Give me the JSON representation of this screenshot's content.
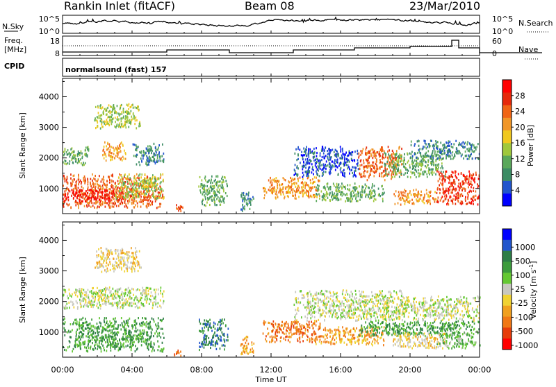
{
  "header": {
    "station": "Rankin Inlet (fitACF)",
    "beam": "Beam 08",
    "date": "23/Mar/2010"
  },
  "top_panels": {
    "nsky_label": "N.Sky",
    "nsky_ticks": [
      "10^5",
      "10^0"
    ],
    "nsearch_label": "N.Search",
    "nsearch_ticks": [
      "10^5",
      "10^0"
    ],
    "freq_label_1": "Freq.",
    "freq_label_2": "[MHz]",
    "freq_ticks": [
      "18",
      "8"
    ],
    "nave_label": "Nave",
    "nave_ticks": [
      "60",
      "0"
    ],
    "cpid_label": "CPID",
    "cpid_text": "normalsound (fast) 157"
  },
  "colors": {
    "power": [
      "#0000ff",
      "#2255cc",
      "#3c8c64",
      "#5aa85a",
      "#a0c83c",
      "#f0c81e",
      "#f09628",
      "#f06414",
      "#e6280a",
      "#ff0000"
    ],
    "velocity": [
      "#0000ff",
      "#2255cc",
      "#2d7d46",
      "#3c9b3c",
      "#64c832",
      "#c8c8c0",
      "#f0d232",
      "#f0a01e",
      "#f07814",
      "#e63c0a",
      "#ff0000"
    ]
  },
  "chart_data": [
    {
      "type": "heatmap",
      "name": "power",
      "title": "",
      "xlabel": "",
      "ylabel": "Slant Range [km]",
      "x_ticks": [
        "00:00",
        "04:00",
        "08:00",
        "12:00",
        "16:00",
        "20:00",
        "00:00"
      ],
      "xlim": [
        0,
        24
      ],
      "ylim": [
        180,
        4600
      ],
      "y_ticks": [
        1000,
        2000,
        3000,
        4000
      ],
      "colorbar_label": "Power [dB]",
      "colorbar_ticks": [
        4,
        8,
        12,
        16,
        20,
        24,
        28
      ],
      "colorbar_range": [
        0,
        32
      ],
      "blobs": [
        {
          "t0": 0.0,
          "t1": 5.8,
          "r0": 400,
          "r1": 1500,
          "c": 7
        },
        {
          "t0": 0.0,
          "t1": 3.5,
          "r0": 600,
          "r1": 1000,
          "c": 9
        },
        {
          "t0": 0.0,
          "t1": 1.5,
          "r0": 1800,
          "r1": 2400,
          "c": 3
        },
        {
          "t0": 2.2,
          "t1": 3.6,
          "r0": 1950,
          "r1": 2550,
          "c": 6
        },
        {
          "t0": 3.0,
          "t1": 5.8,
          "r0": 700,
          "r1": 1500,
          "c": 4
        },
        {
          "t0": 4.0,
          "t1": 5.8,
          "r0": 1800,
          "r1": 2500,
          "c": 2
        },
        {
          "t0": 1.8,
          "t1": 4.5,
          "r0": 3000,
          "r1": 3800,
          "c": 4
        },
        {
          "t0": 6.4,
          "t1": 6.9,
          "r0": 200,
          "r1": 500,
          "c": 7
        },
        {
          "t0": 7.8,
          "t1": 9.5,
          "r0": 450,
          "r1": 1450,
          "c": 3
        },
        {
          "t0": 10.2,
          "t1": 11.0,
          "r0": 300,
          "r1": 900,
          "c": 2
        },
        {
          "t0": 11.5,
          "t1": 14.8,
          "r0": 700,
          "r1": 1400,
          "c": 6
        },
        {
          "t0": 13.3,
          "t1": 17.0,
          "r0": 1400,
          "r1": 2400,
          "c": 1
        },
        {
          "t0": 14.5,
          "t1": 18.5,
          "r0": 600,
          "r1": 1200,
          "c": 3
        },
        {
          "t0": 17.0,
          "t1": 19.5,
          "r0": 1300,
          "r1": 2400,
          "c": 7
        },
        {
          "t0": 18.5,
          "t1": 22.0,
          "r0": 1400,
          "r1": 2200,
          "c": 3
        },
        {
          "t0": 19.0,
          "t1": 21.5,
          "r0": 500,
          "r1": 1000,
          "c": 6
        },
        {
          "t0": 21.5,
          "t1": 24.0,
          "r0": 500,
          "r1": 1600,
          "c": 8
        },
        {
          "t0": 20.0,
          "t1": 24.0,
          "r0": 2000,
          "r1": 2600,
          "c": 2
        }
      ]
    },
    {
      "type": "heatmap",
      "name": "velocity",
      "title": "",
      "xlabel": "Time UT",
      "ylabel": "Slant Range [km]",
      "x_ticks": [
        "00:00",
        "04:00",
        "08:00",
        "12:00",
        "16:00",
        "20:00",
        "00:00"
      ],
      "xlim": [
        0,
        24
      ],
      "ylim": [
        180,
        4600
      ],
      "y_ticks": [
        1000,
        2000,
        3000,
        4000
      ],
      "colorbar_label": "Velocity [m s^-1]",
      "colorbar_ticks": [
        "1000",
        "500",
        "100",
        "25",
        "-25",
        "-100",
        "-500",
        "-1000"
      ],
      "blobs": [
        {
          "t0": 0.0,
          "t1": 5.8,
          "r0": 400,
          "r1": 1500,
          "c": 3
        },
        {
          "t0": 0.0,
          "t1": 5.8,
          "r0": 1800,
          "r1": 2500,
          "c": 5
        },
        {
          "t0": 1.8,
          "t1": 4.5,
          "r0": 3000,
          "r1": 3800,
          "c": 6
        },
        {
          "t0": 6.4,
          "t1": 6.9,
          "r0": 200,
          "r1": 500,
          "c": 8
        },
        {
          "t0": 7.8,
          "t1": 9.5,
          "r0": 450,
          "r1": 1450,
          "c": 2
        },
        {
          "t0": 10.2,
          "t1": 11.0,
          "r0": 300,
          "r1": 900,
          "c": 7
        },
        {
          "t0": 11.5,
          "t1": 14.8,
          "r0": 700,
          "r1": 1400,
          "c": 8
        },
        {
          "t0": 13.3,
          "t1": 19.5,
          "r0": 1400,
          "r1": 2400,
          "c": 5
        },
        {
          "t0": 14.5,
          "t1": 18.5,
          "r0": 600,
          "r1": 1200,
          "c": 7
        },
        {
          "t0": 17.0,
          "t1": 24.0,
          "r0": 900,
          "r1": 1400,
          "c": 3
        },
        {
          "t0": 19.0,
          "t1": 22.0,
          "r0": 500,
          "r1": 1000,
          "c": 6
        },
        {
          "t0": 18.5,
          "t1": 24.0,
          "r0": 1400,
          "r1": 2200,
          "c": 5
        },
        {
          "t0": 21.5,
          "t1": 24.0,
          "r0": 500,
          "r1": 1000,
          "c": 4
        }
      ]
    }
  ]
}
